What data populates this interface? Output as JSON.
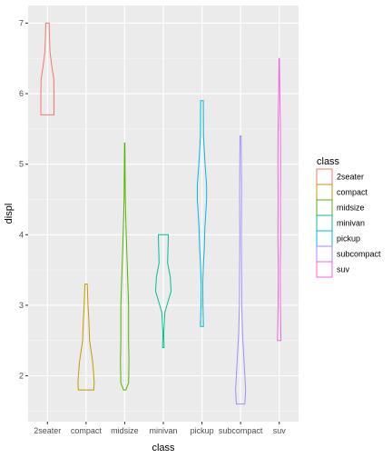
{
  "chart_data": {
    "type": "violin",
    "xlabel": "class",
    "ylabel": "displ",
    "categories": [
      "2seater",
      "compact",
      "midsize",
      "minivan",
      "pickup",
      "subcompact",
      "suv"
    ],
    "ylim": [
      1.35,
      7.25
    ],
    "yticks": [
      2,
      3,
      4,
      5,
      6,
      7
    ],
    "grid": true,
    "legend": {
      "title": "class",
      "position": "right",
      "entries": [
        "2seater",
        "compact",
        "midsize",
        "minivan",
        "pickup",
        "subcompact",
        "suv"
      ]
    },
    "colors": {
      "2seater": "#F8766D",
      "compact": "#C49A00",
      "midsize": "#53B400",
      "minivan": "#00C094",
      "pickup": "#00B6EB",
      "subcompact": "#A58AFF",
      "suv": "#FB61D7"
    },
    "series": [
      {
        "name": "2seater",
        "range": [
          5.7,
          7.0
        ],
        "profile": [
          [
            5.7,
            0.34
          ],
          [
            6.0,
            0.34
          ],
          [
            6.2,
            0.33
          ],
          [
            6.4,
            0.22
          ],
          [
            6.6,
            0.13
          ],
          [
            6.85,
            0.1
          ],
          [
            7.0,
            0.09
          ]
        ]
      },
      {
        "name": "compact",
        "range": [
          1.8,
          3.3
        ],
        "profile": [
          [
            1.8,
            0.4
          ],
          [
            1.9,
            0.42
          ],
          [
            2.0,
            0.4
          ],
          [
            2.2,
            0.34
          ],
          [
            2.5,
            0.18
          ],
          [
            2.8,
            0.14
          ],
          [
            3.0,
            0.1
          ],
          [
            3.3,
            0.06
          ]
        ]
      },
      {
        "name": "midsize",
        "range": [
          1.8,
          5.3
        ],
        "profile": [
          [
            1.8,
            0.06
          ],
          [
            1.9,
            0.2
          ],
          [
            2.2,
            0.22
          ],
          [
            2.5,
            0.2
          ],
          [
            3.0,
            0.2
          ],
          [
            3.5,
            0.14
          ],
          [
            4.0,
            0.08
          ],
          [
            4.5,
            0.03
          ],
          [
            5.3,
            0.01
          ]
        ]
      },
      {
        "name": "minivan",
        "range": [
          2.4,
          4.0
        ],
        "profile": [
          [
            2.4,
            0.04
          ],
          [
            2.6,
            0.02
          ],
          [
            2.9,
            0.08
          ],
          [
            3.2,
            0.4
          ],
          [
            3.4,
            0.36
          ],
          [
            3.6,
            0.22
          ],
          [
            3.8,
            0.24
          ],
          [
            4.0,
            0.26
          ]
        ]
      },
      {
        "name": "pickup",
        "range": [
          2.7,
          5.9
        ],
        "profile": [
          [
            2.7,
            0.08
          ],
          [
            3.0,
            0.05
          ],
          [
            3.3,
            0.04
          ],
          [
            3.6,
            0.08
          ],
          [
            3.8,
            0.12
          ],
          [
            4.1,
            0.15
          ],
          [
            4.5,
            0.24
          ],
          [
            4.7,
            0.24
          ],
          [
            5.0,
            0.16
          ],
          [
            5.4,
            0.08
          ],
          [
            5.9,
            0.07
          ]
        ]
      },
      {
        "name": "subcompact",
        "range": [
          1.6,
          5.4
        ],
        "profile": [
          [
            1.6,
            0.22
          ],
          [
            1.8,
            0.26
          ],
          [
            2.2,
            0.18
          ],
          [
            2.6,
            0.1
          ],
          [
            3.0,
            0.06
          ],
          [
            3.5,
            0.05
          ],
          [
            4.0,
            0.04
          ],
          [
            4.6,
            0.05
          ],
          [
            5.0,
            0.04
          ],
          [
            5.4,
            0.03
          ]
        ]
      },
      {
        "name": "suv",
        "range": [
          2.5,
          6.5
        ],
        "profile": [
          [
            2.5,
            0.09
          ],
          [
            3.0,
            0.06
          ],
          [
            3.5,
            0.05
          ],
          [
            4.0,
            0.07
          ],
          [
            4.5,
            0.06
          ],
          [
            5.0,
            0.07
          ],
          [
            5.5,
            0.06
          ],
          [
            6.0,
            0.03
          ],
          [
            6.5,
            0.01
          ]
        ]
      }
    ]
  }
}
